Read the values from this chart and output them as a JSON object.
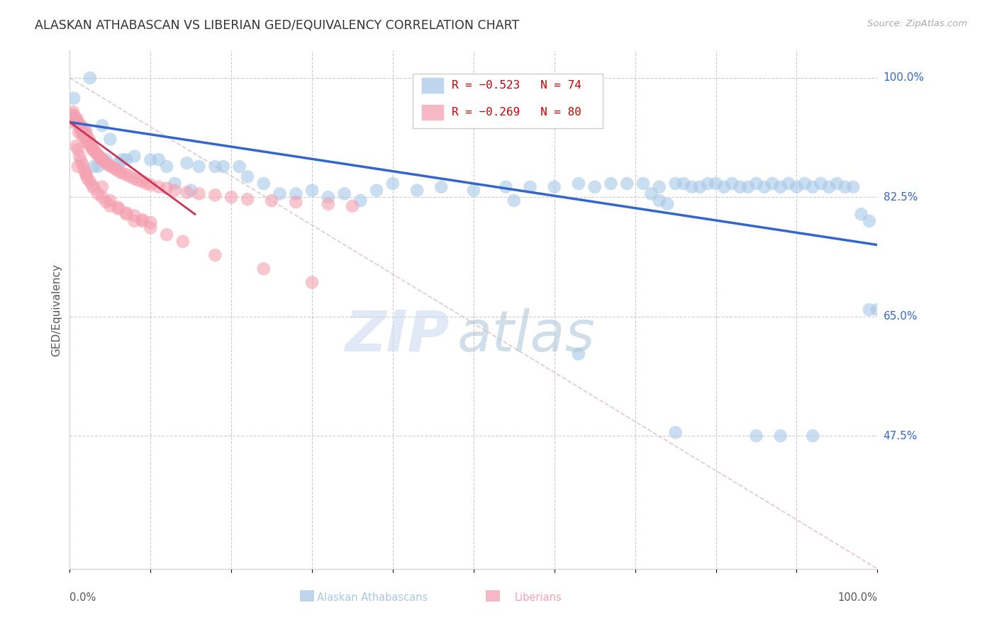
{
  "title": "ALASKAN ATHABASCAN VS LIBERIAN GED/EQUIVALENCY CORRELATION CHART",
  "source": "Source: ZipAtlas.com",
  "ylabel": "GED/Equivalency",
  "legend_blue_r": "R = −0.523",
  "legend_blue_n": "N = 74",
  "legend_pink_r": "R = −0.269",
  "legend_pink_n": "N = 80",
  "blue_color": "#a8c8e8",
  "blue_line_color": "#3366cc",
  "pink_color": "#f4a0b0",
  "pink_line_color": "#cc3355",
  "watermark_zip": "ZIP",
  "watermark_atlas": "atlas",
  "right_labels": [
    [
      1.0,
      "100.0%"
    ],
    [
      0.825,
      "82.5%"
    ],
    [
      0.65,
      "65.0%"
    ],
    [
      0.475,
      "47.5%"
    ]
  ],
  "xmin": 0.0,
  "xmax": 1.0,
  "ymin": 0.28,
  "ymax": 1.04,
  "hlines": [
    1.0,
    0.825,
    0.65,
    0.475
  ],
  "vlines": [
    0.0,
    0.1,
    0.2,
    0.3,
    0.4,
    0.5,
    0.6,
    0.7,
    0.8,
    0.9,
    1.0
  ],
  "blue_trend_x": [
    0.0,
    1.0
  ],
  "blue_trend_y": [
    0.935,
    0.755
  ],
  "pink_trend_x": [
    0.0,
    0.155
  ],
  "pink_trend_y": [
    0.935,
    0.8
  ],
  "ref_line_x": [
    0.0,
    1.0
  ],
  "ref_line_y": [
    1.0,
    0.28
  ],
  "blue_x": [
    0.005,
    0.02,
    0.025,
    0.03,
    0.035,
    0.04,
    0.045,
    0.05,
    0.06,
    0.065,
    0.07,
    0.08,
    0.1,
    0.11,
    0.12,
    0.13,
    0.145,
    0.16,
    0.18,
    0.19,
    0.21,
    0.22,
    0.24,
    0.26,
    0.28,
    0.3,
    0.32,
    0.34,
    0.36,
    0.38,
    0.4,
    0.43,
    0.46,
    0.5,
    0.54,
    0.57,
    0.6,
    0.63,
    0.65,
    0.67,
    0.69,
    0.71,
    0.73,
    0.75,
    0.76,
    0.77,
    0.78,
    0.79,
    0.8,
    0.81,
    0.82,
    0.83,
    0.84,
    0.85,
    0.86,
    0.87,
    0.88,
    0.89,
    0.9,
    0.91,
    0.92,
    0.93,
    0.94,
    0.95,
    0.96,
    0.97,
    0.98,
    0.99,
    1.0,
    0.15,
    0.55,
    0.72,
    0.73,
    0.74
  ],
  "blue_y": [
    0.97,
    0.92,
    1.0,
    0.87,
    0.87,
    0.93,
    0.88,
    0.91,
    0.875,
    0.88,
    0.88,
    0.885,
    0.88,
    0.88,
    0.87,
    0.845,
    0.875,
    0.87,
    0.87,
    0.87,
    0.87,
    0.855,
    0.845,
    0.83,
    0.83,
    0.835,
    0.825,
    0.83,
    0.82,
    0.835,
    0.845,
    0.835,
    0.84,
    0.835,
    0.84,
    0.84,
    0.84,
    0.845,
    0.84,
    0.845,
    0.845,
    0.845,
    0.84,
    0.845,
    0.845,
    0.84,
    0.84,
    0.845,
    0.845,
    0.84,
    0.845,
    0.84,
    0.84,
    0.845,
    0.84,
    0.845,
    0.84,
    0.845,
    0.84,
    0.845,
    0.84,
    0.845,
    0.84,
    0.845,
    0.84,
    0.84,
    0.8,
    0.79,
    0.66,
    0.835,
    0.82,
    0.83,
    0.82,
    0.815
  ],
  "pink_x": [
    0.002,
    0.003,
    0.004,
    0.005,
    0.006,
    0.007,
    0.008,
    0.009,
    0.01,
    0.011,
    0.012,
    0.013,
    0.014,
    0.015,
    0.016,
    0.017,
    0.018,
    0.019,
    0.02,
    0.021,
    0.022,
    0.023,
    0.024,
    0.025,
    0.026,
    0.027,
    0.028,
    0.03,
    0.032,
    0.034,
    0.036,
    0.038,
    0.04,
    0.042,
    0.045,
    0.048,
    0.051,
    0.055,
    0.058,
    0.062,
    0.066,
    0.07,
    0.075,
    0.08,
    0.085,
    0.09,
    0.095,
    0.1,
    0.11,
    0.12,
    0.13,
    0.145,
    0.16,
    0.18,
    0.2,
    0.22,
    0.25,
    0.28,
    0.32,
    0.35,
    0.008,
    0.01,
    0.012,
    0.014,
    0.016,
    0.018,
    0.02,
    0.022,
    0.025,
    0.028,
    0.03,
    0.035,
    0.04,
    0.045,
    0.05,
    0.06,
    0.07,
    0.08,
    0.09,
    0.1
  ],
  "pink_y": [
    0.935,
    0.945,
    0.95,
    0.945,
    0.94,
    0.94,
    0.935,
    0.94,
    0.935,
    0.92,
    0.93,
    0.925,
    0.93,
    0.92,
    0.915,
    0.92,
    0.915,
    0.925,
    0.91,
    0.915,
    0.905,
    0.905,
    0.91,
    0.905,
    0.9,
    0.898,
    0.895,
    0.895,
    0.89,
    0.888,
    0.885,
    0.883,
    0.88,
    0.878,
    0.875,
    0.872,
    0.87,
    0.868,
    0.865,
    0.862,
    0.86,
    0.858,
    0.855,
    0.852,
    0.85,
    0.848,
    0.845,
    0.843,
    0.84,
    0.838,
    0.835,
    0.832,
    0.83,
    0.828,
    0.825,
    0.822,
    0.82,
    0.818,
    0.815,
    0.812,
    0.9,
    0.895,
    0.885,
    0.878,
    0.872,
    0.865,
    0.858,
    0.852,
    0.848,
    0.842,
    0.838,
    0.83,
    0.825,
    0.818,
    0.812,
    0.808,
    0.802,
    0.798,
    0.792,
    0.788
  ],
  "pink_low_x": [
    0.01,
    0.02,
    0.04,
    0.05,
    0.06,
    0.07,
    0.08,
    0.09,
    0.1,
    0.12,
    0.14,
    0.18,
    0.24,
    0.3
  ],
  "pink_low_y": [
    0.87,
    0.86,
    0.84,
    0.82,
    0.81,
    0.8,
    0.79,
    0.79,
    0.78,
    0.77,
    0.76,
    0.74,
    0.72,
    0.7
  ],
  "blue_low_x": [
    0.63,
    0.75,
    0.85,
    0.88,
    0.92,
    0.99
  ],
  "blue_low_y": [
    0.595,
    0.48,
    0.475,
    0.475,
    0.475,
    0.66
  ]
}
